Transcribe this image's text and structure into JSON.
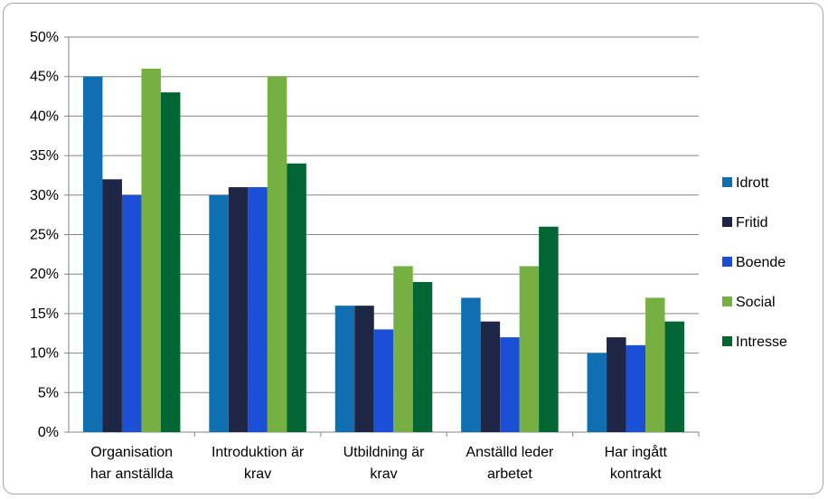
{
  "chart_data": {
    "type": "bar",
    "title": "",
    "xlabel": "",
    "ylabel": "",
    "ylim": [
      0,
      50
    ],
    "y_tick_labels": [
      "0%",
      "5%",
      "10%",
      "15%",
      "20%",
      "25%",
      "30%",
      "35%",
      "40%",
      "45%",
      "50%"
    ],
    "categories": [
      [
        "Organisation",
        "har anställda"
      ],
      [
        "Introduktion är",
        "krav"
      ],
      [
        "Utbildning är",
        "krav"
      ],
      [
        "Anställd leder",
        "arbetet"
      ],
      [
        "Har ingått",
        "kontrakt"
      ]
    ],
    "series": [
      {
        "name": "Idrott",
        "color": "#0f6fb0",
        "values": [
          45,
          30,
          16,
          17,
          10
        ]
      },
      {
        "name": "Fritid",
        "color": "#1f2544",
        "values": [
          32,
          31,
          16,
          14,
          12
        ]
      },
      {
        "name": "Boende",
        "color": "#1a4fd6",
        "values": [
          30,
          31,
          13,
          12,
          11
        ]
      },
      {
        "name": "Social",
        "color": "#76b043",
        "values": [
          46,
          45,
          21,
          21,
          17
        ]
      },
      {
        "name": "Intresse",
        "color": "#006633",
        "values": [
          43,
          34,
          19,
          26,
          14
        ]
      }
    ],
    "grid": true,
    "legend_position": "right"
  }
}
